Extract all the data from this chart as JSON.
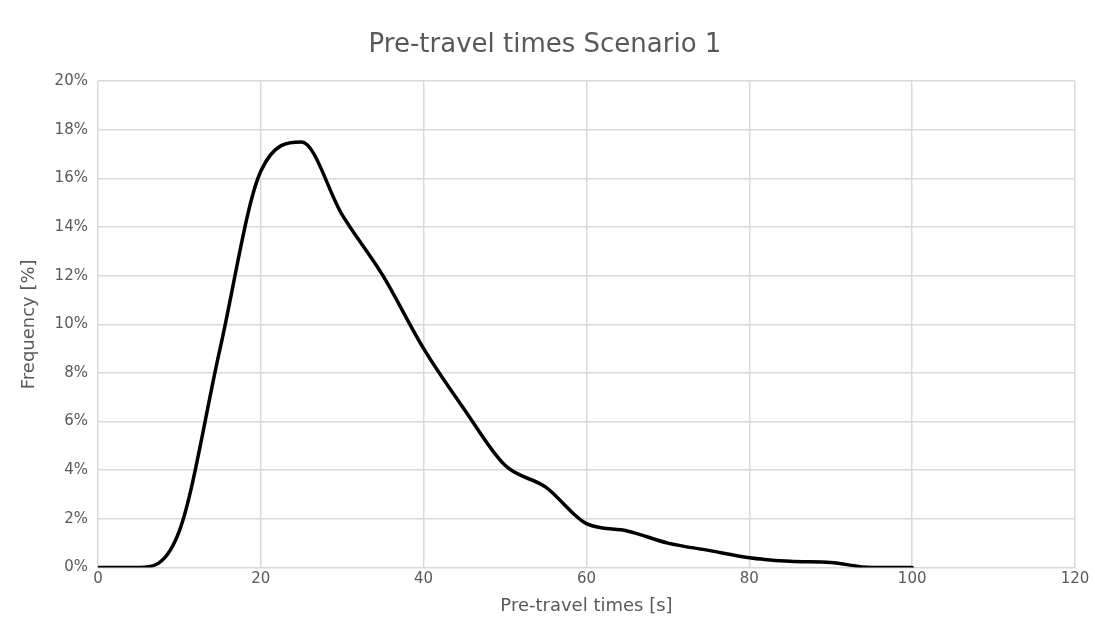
{
  "chart_data": {
    "type": "line",
    "title": "Pre-travel times Scenario 1",
    "xlabel": "Pre-travel times [s]",
    "ylabel": "Frequency [%]",
    "x": [
      0,
      5,
      10,
      15,
      20,
      25,
      30,
      35,
      40,
      45,
      50,
      55,
      60,
      65,
      70,
      75,
      80,
      85,
      90,
      95,
      100
    ],
    "series": [
      {
        "color": "#000000",
        "values": [
          0,
          0,
          1.5,
          9,
          16.3,
          17.5,
          14.5,
          12,
          9,
          6.5,
          4.2,
          3.3,
          1.8,
          1.5,
          1,
          0.7,
          0.4,
          0.25,
          0.2,
          0,
          0
        ]
      }
    ],
    "xlim": [
      0,
      120
    ],
    "xticks": [
      0,
      20,
      40,
      60,
      80,
      100,
      120
    ],
    "ylim": [
      0,
      20
    ],
    "yticks": [
      {
        "value": 0,
        "label": "0%"
      },
      {
        "value": 2,
        "label": "2%"
      },
      {
        "value": 4,
        "label": "4%"
      },
      {
        "value": 6,
        "label": "6%"
      },
      {
        "value": 8,
        "label": "8%"
      },
      {
        "value": 10,
        "label": "10%"
      },
      {
        "value": 12,
        "label": "12%"
      },
      {
        "value": 14,
        "label": "14%"
      },
      {
        "value": 16,
        "label": "16%"
      },
      {
        "value": 18,
        "label": "18%"
      },
      {
        "value": 20,
        "label": "20%"
      }
    ],
    "grid": true,
    "legend": false,
    "marker": "none",
    "line_style": "solid"
  }
}
